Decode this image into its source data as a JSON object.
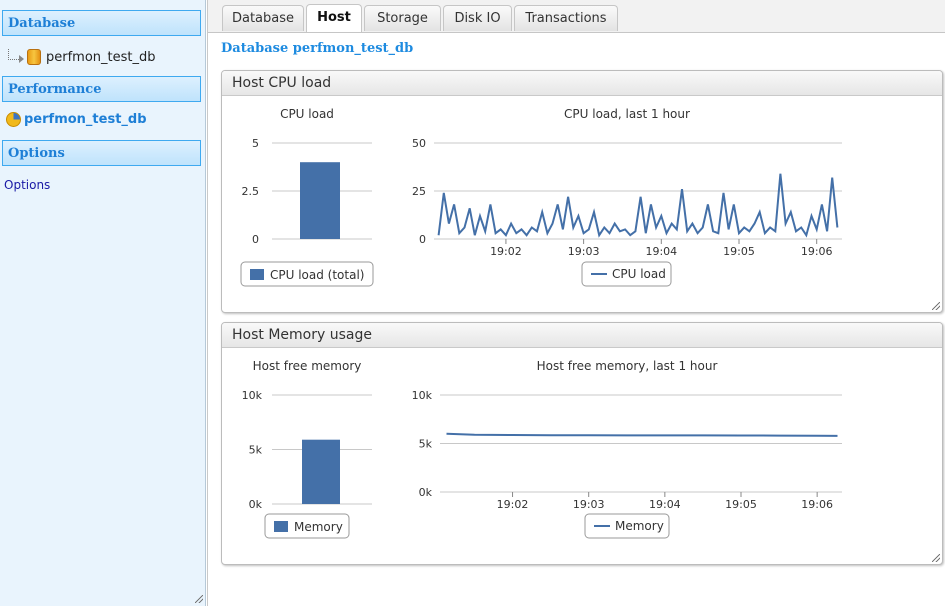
{
  "sidebar": {
    "database_heading": "Database",
    "database_item": "perfmon_test_db",
    "performance_heading": "Performance",
    "performance_item": "perfmon_test_db",
    "options_heading": "Options",
    "options_link": "Options"
  },
  "tabs": [
    {
      "label": "Database",
      "active": false
    },
    {
      "label": "Host",
      "active": true
    },
    {
      "label": "Storage",
      "active": false
    },
    {
      "label": "Disk IO",
      "active": false
    },
    {
      "label": "Transactions",
      "active": false
    }
  ],
  "db_title": "Database perfmon_test_db",
  "panels": {
    "cpu": {
      "title": "Host CPU load"
    },
    "memory": {
      "title": "Host Memory usage"
    }
  },
  "colors": {
    "series": "#4470a8",
    "accent": "#1e7fd6"
  },
  "chart_data": [
    {
      "type": "bar",
      "title": "CPU load",
      "categories": [
        ""
      ],
      "series": [
        {
          "name": "CPU load (total)",
          "values": [
            4
          ]
        }
      ],
      "ylim": [
        0,
        5
      ],
      "yticks": [
        "0",
        "2.5",
        "5"
      ],
      "grid": true,
      "legend": "bottom"
    },
    {
      "type": "line",
      "title": "CPU load, last 1 hour",
      "x": [
        "19:01:08",
        "19:01:12",
        "19:01:16",
        "19:01:20",
        "19:01:24",
        "19:01:28",
        "19:01:32",
        "19:01:36",
        "19:01:40",
        "19:01:44",
        "19:01:48",
        "19:01:52",
        "19:01:56",
        "19:02:00",
        "19:02:04",
        "19:02:08",
        "19:02:12",
        "19:02:16",
        "19:02:20",
        "19:02:24",
        "19:02:28",
        "19:02:32",
        "19:02:36",
        "19:02:40",
        "19:02:44",
        "19:02:48",
        "19:02:52",
        "19:02:56",
        "19:03:00",
        "19:03:04",
        "19:03:08",
        "19:03:12",
        "19:03:16",
        "19:03:20",
        "19:03:24",
        "19:03:28",
        "19:03:32",
        "19:03:36",
        "19:03:40",
        "19:03:44",
        "19:03:48",
        "19:03:52",
        "19:03:56",
        "19:04:00",
        "19:04:04",
        "19:04:08",
        "19:04:12",
        "19:04:16",
        "19:04:20",
        "19:04:24",
        "19:04:28",
        "19:04:32",
        "19:04:36",
        "19:04:40",
        "19:04:44",
        "19:04:48",
        "19:04:52",
        "19:04:56",
        "19:05:00",
        "19:05:04",
        "19:05:08",
        "19:05:12",
        "19:05:16",
        "19:05:20",
        "19:05:24",
        "19:05:28",
        "19:05:32",
        "19:05:36",
        "19:05:40",
        "19:05:44",
        "19:05:48",
        "19:05:52",
        "19:05:56",
        "19:06:00",
        "19:06:04",
        "19:06:08",
        "19:06:12",
        "19:06:16"
      ],
      "series": [
        {
          "name": "CPU load",
          "values": [
            2,
            24,
            8,
            18,
            3,
            6,
            16,
            2,
            12,
            4,
            18,
            3,
            5,
            2,
            8,
            3,
            5,
            2,
            6,
            4,
            14,
            3,
            8,
            18,
            5,
            22,
            6,
            12,
            3,
            5,
            14,
            2,
            6,
            3,
            8,
            4,
            5,
            2,
            4,
            22,
            3,
            18,
            6,
            12,
            3,
            8,
            5,
            26,
            4,
            8,
            3,
            6,
            18,
            4,
            3,
            24,
            5,
            18,
            3,
            6,
            4,
            8,
            14,
            3,
            6,
            4,
            34,
            8,
            14,
            4,
            6,
            2,
            12,
            5,
            18,
            4,
            32,
            6
          ]
        }
      ],
      "ylim": [
        0,
        50
      ],
      "yticks": [
        "0",
        "25",
        "50"
      ],
      "xticks": [
        "19:02",
        "19:03",
        "19:04",
        "19:05",
        "19:06"
      ],
      "grid": true,
      "legend": "bottom"
    },
    {
      "type": "bar",
      "title": "Host free memory",
      "categories": [
        ""
      ],
      "series": [
        {
          "name": "Memory",
          "values": [
            5900
          ]
        }
      ],
      "ylim": [
        0,
        10000
      ],
      "yticks": [
        "0k",
        "5k",
        "10k"
      ],
      "grid": true,
      "legend": "bottom"
    },
    {
      "type": "line",
      "title": "Host free memory, last 1 hour",
      "x": [
        "19:01:08",
        "19:01:30",
        "19:02:00",
        "19:02:30",
        "19:03:00",
        "19:03:30",
        "19:04:00",
        "19:04:30",
        "19:05:00",
        "19:05:30",
        "19:06:00",
        "19:06:16"
      ],
      "series": [
        {
          "name": "Memory",
          "values": [
            6000,
            5900,
            5880,
            5860,
            5850,
            5840,
            5840,
            5830,
            5820,
            5810,
            5800,
            5780
          ]
        }
      ],
      "ylim": [
        0,
        10000
      ],
      "yticks": [
        "0k",
        "5k",
        "10k"
      ],
      "xticks": [
        "19:02",
        "19:03",
        "19:04",
        "19:05",
        "19:06"
      ],
      "grid": true,
      "legend": "bottom"
    }
  ]
}
